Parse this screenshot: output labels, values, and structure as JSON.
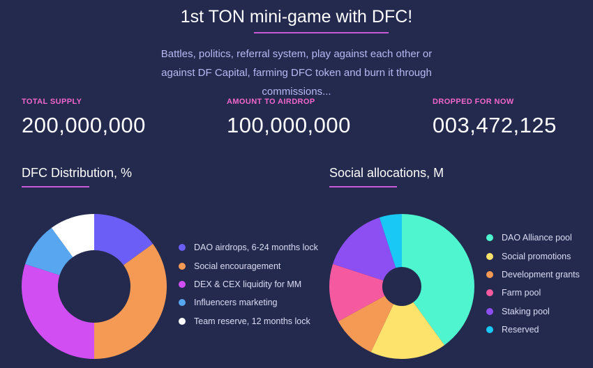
{
  "header": {
    "title": "1st TON mini-game with DFC!",
    "subtitle": "Battles, politics, referral system, play against each other or against DF Capital, farming DFC token and burn it through commissions..."
  },
  "stats": [
    {
      "label": "TOTAL SUPPLY",
      "value": "200,000,000"
    },
    {
      "label": "AMOUNT TO AIRDROP",
      "value": "100,000,000"
    },
    {
      "label": "DROPPED FOR NOW",
      "value": "003,472,125"
    }
  ],
  "colors": {
    "background": "#232a4e",
    "accent": "#c95bd6",
    "label": "#f466cb"
  },
  "chart_data": [
    {
      "type": "pie",
      "title": "DFC Distribution, %",
      "slices": [
        {
          "label": "DAO airdrops, 6-24 months lock",
          "value": 15,
          "color": "#6b5ef7"
        },
        {
          "label": "Social encouragement",
          "value": 35,
          "color": "#f59a54"
        },
        {
          "label": "DEX & CEX liquidity for MM",
          "value": 30,
          "color": "#d14ff2"
        },
        {
          "label": "Influencers marketing",
          "value": 10,
          "color": "#58a6f0"
        },
        {
          "label": "Team reserve, 12 months lock",
          "value": 10,
          "color": "#ffffff"
        }
      ]
    },
    {
      "type": "pie",
      "title": "Social allocations, M",
      "slices": [
        {
          "label": "DAO Alliance pool",
          "value": 40,
          "color": "#4ff5cf"
        },
        {
          "label": "Social promotions",
          "value": 17,
          "color": "#fde26c"
        },
        {
          "label": "Development grants",
          "value": 10,
          "color": "#f59a54"
        },
        {
          "label": "Farm pool",
          "value": 13,
          "color": "#f55aa0"
        },
        {
          "label": "Staking pool",
          "value": 15,
          "color": "#8e4ff2"
        },
        {
          "label": "Reserved",
          "value": 5,
          "color": "#19c8f5"
        }
      ]
    }
  ]
}
